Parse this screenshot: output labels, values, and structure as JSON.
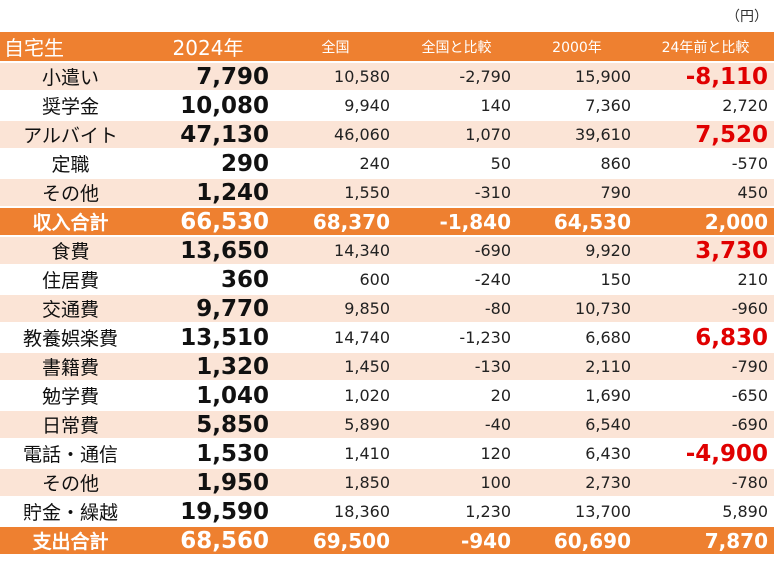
{
  "unit_label": "（円）",
  "header": {
    "label": "自宅生",
    "year": "2024年",
    "national": "全国",
    "vs_national": "全国と比較",
    "year2000": "2000年",
    "vs_24_years": "24年前と比較"
  },
  "rows": [
    {
      "label": "小遣い",
      "y2024": "7,790",
      "national": "10,580",
      "vs_national": "-2,790",
      "y2000": "15,900",
      "vs_24": "-8,110",
      "highlight": true,
      "style": "light"
    },
    {
      "label": "奨学金",
      "y2024": "10,080",
      "national": "9,940",
      "vs_national": "140",
      "y2000": "7,360",
      "vs_24": "2,720",
      "highlight": false,
      "style": "white"
    },
    {
      "label": "アルバイト",
      "y2024": "47,130",
      "national": "46,060",
      "vs_national": "1,070",
      "y2000": "39,610",
      "vs_24": "7,520",
      "highlight": true,
      "style": "light"
    },
    {
      "label": "定職",
      "y2024": "290",
      "national": "240",
      "vs_national": "50",
      "y2000": "860",
      "vs_24": "-570",
      "highlight": false,
      "style": "white"
    },
    {
      "label": "その他",
      "y2024": "1,240",
      "national": "1,550",
      "vs_national": "-310",
      "y2000": "790",
      "vs_24": "450",
      "highlight": false,
      "style": "light"
    },
    {
      "label": "収入合計",
      "y2024": "66,530",
      "national": "68,370",
      "vs_national": "-1,840",
      "y2000": "64,530",
      "vs_24": "2,000",
      "highlight": false,
      "style": "total"
    },
    {
      "label": "食費",
      "y2024": "13,650",
      "national": "14,340",
      "vs_national": "-690",
      "y2000": "9,920",
      "vs_24": "3,730",
      "highlight": true,
      "style": "light"
    },
    {
      "label": "住居費",
      "y2024": "360",
      "national": "600",
      "vs_national": "-240",
      "y2000": "150",
      "vs_24": "210",
      "highlight": false,
      "style": "white"
    },
    {
      "label": "交通費",
      "y2024": "9,770",
      "national": "9,850",
      "vs_national": "-80",
      "y2000": "10,730",
      "vs_24": "-960",
      "highlight": false,
      "style": "light"
    },
    {
      "label": "教養娯楽費",
      "y2024": "13,510",
      "national": "14,740",
      "vs_national": "-1,230",
      "y2000": "6,680",
      "vs_24": "6,830",
      "highlight": true,
      "style": "white"
    },
    {
      "label": "書籍費",
      "y2024": "1,320",
      "national": "1,450",
      "vs_national": "-130",
      "y2000": "2,110",
      "vs_24": "-790",
      "highlight": false,
      "style": "light"
    },
    {
      "label": "勉学費",
      "y2024": "1,040",
      "national": "1,020",
      "vs_national": "20",
      "y2000": "1,690",
      "vs_24": "-650",
      "highlight": false,
      "style": "white"
    },
    {
      "label": "日常費",
      "y2024": "5,850",
      "national": "5,890",
      "vs_national": "-40",
      "y2000": "6,540",
      "vs_24": "-690",
      "highlight": false,
      "style": "light"
    },
    {
      "label": "電話・通信",
      "y2024": "1,530",
      "national": "1,410",
      "vs_national": "120",
      "y2000": "6,430",
      "vs_24": "-4,900",
      "highlight": true,
      "style": "white"
    },
    {
      "label": "その他",
      "y2024": "1,950",
      "national": "1,850",
      "vs_national": "100",
      "y2000": "2,730",
      "vs_24": "-780",
      "highlight": false,
      "style": "light"
    },
    {
      "label": "貯金・繰越",
      "y2024": "19,590",
      "national": "18,360",
      "vs_national": "1,230",
      "y2000": "13,700",
      "vs_24": "5,890",
      "highlight": false,
      "style": "white"
    },
    {
      "label": "支出合計",
      "y2024": "68,560",
      "national": "69,500",
      "vs_national": "-940",
      "y2000": "60,690",
      "vs_24": "7,870",
      "highlight": false,
      "style": "total"
    }
  ],
  "colors": {
    "accent_orange": "#ee8030",
    "row_tint": "#fbe4d6",
    "highlight_red": "#e00000"
  }
}
